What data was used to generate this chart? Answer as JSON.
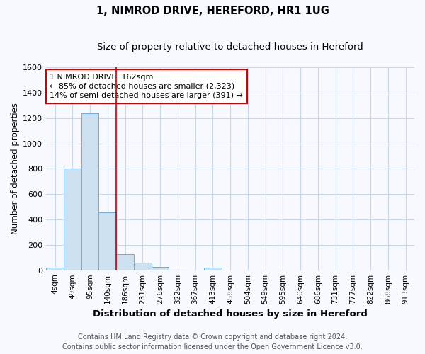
{
  "title": "1, NIMROD DRIVE, HEREFORD, HR1 1UG",
  "subtitle": "Size of property relative to detached houses in Hereford",
  "xlabel": "Distribution of detached houses by size in Hereford",
  "ylabel": "Number of detached properties",
  "bin_labels": [
    "4sqm",
    "49sqm",
    "95sqm",
    "140sqm",
    "186sqm",
    "231sqm",
    "276sqm",
    "322sqm",
    "367sqm",
    "413sqm",
    "458sqm",
    "504sqm",
    "549sqm",
    "595sqm",
    "640sqm",
    "686sqm",
    "731sqm",
    "777sqm",
    "822sqm",
    "868sqm",
    "913sqm"
  ],
  "bar_values": [
    22,
    800,
    1240,
    455,
    128,
    62,
    25,
    5,
    0,
    22,
    0,
    0,
    0,
    0,
    0,
    0,
    0,
    0,
    0,
    0,
    0
  ],
  "bar_color": "#cde0f0",
  "bar_edge_color": "#6aaed6",
  "red_line_x": 3.5,
  "annotation_line1": "1 NIMROD DRIVE: 162sqm",
  "annotation_line2": "← 85% of detached houses are smaller (2,323)",
  "annotation_line3": "14% of semi-detached houses are larger (391) →",
  "annotation_box_color": "#ffffff",
  "annotation_border_color": "#cc0000",
  "red_line_color": "#cc0000",
  "ylim": [
    0,
    1600
  ],
  "yticks": [
    0,
    200,
    400,
    600,
    800,
    1000,
    1200,
    1400,
    1600
  ],
  "footer_line1": "Contains HM Land Registry data © Crown copyright and database right 2024.",
  "footer_line2": "Contains public sector information licensed under the Open Government Licence v3.0.",
  "background_color": "#f7f9ff",
  "plot_bg_color": "#f7f9ff",
  "grid_color": "#c8d8e8",
  "title_fontsize": 10.5,
  "subtitle_fontsize": 9.5,
  "xlabel_fontsize": 9.5,
  "ylabel_fontsize": 8.5,
  "tick_fontsize": 7.5,
  "annotation_fontsize": 8.0,
  "footer_fontsize": 7.0
}
